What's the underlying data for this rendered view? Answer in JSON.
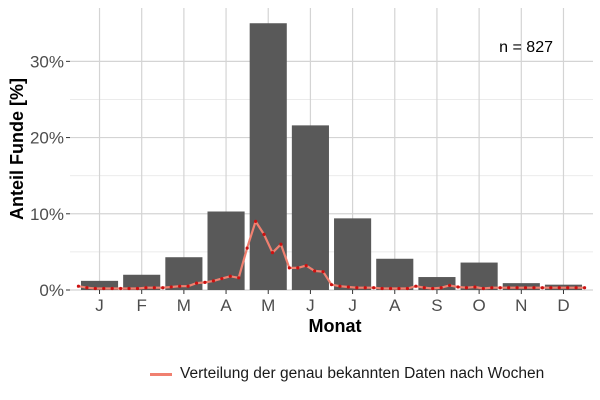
{
  "chart_data": {
    "type": "bar",
    "categories": [
      "J",
      "F",
      "M",
      "A",
      "M",
      "J",
      "J",
      "A",
      "S",
      "O",
      "N",
      "D"
    ],
    "values": [
      1.2,
      2.0,
      4.3,
      10.3,
      35.0,
      21.6,
      9.4,
      4.1,
      1.7,
      3.6,
      0.9,
      0.7
    ],
    "xlabel": "Monat",
    "ylabel": "Anteil Funde [%]",
    "ylim": [
      0,
      37
    ],
    "yticks": [
      0,
      10,
      20,
      30
    ],
    "ytick_labels": [
      "0%",
      "10%",
      "20%",
      "30%"
    ],
    "annotation": "n = 827",
    "bar_color": "#595959",
    "grid": true,
    "legend_position": "bottom",
    "series": [
      {
        "name": "Verteilung der genau bekannten Daten nach Wochen",
        "type": "line",
        "color": "#f08070",
        "point_color": "#cc1111",
        "x": [
          0.5,
          0.7,
          0.9,
          1.1,
          1.3,
          1.5,
          1.7,
          1.9,
          2.1,
          2.3,
          2.5,
          2.7,
          2.9,
          3.1,
          3.3,
          3.5,
          3.7,
          3.9,
          4.1,
          4.3,
          4.5,
          4.7,
          4.9,
          5.1,
          5.3,
          5.5,
          5.7,
          5.9,
          6.1,
          6.3,
          6.5,
          6.7,
          6.9,
          7.1,
          7.3,
          7.5,
          7.7,
          7.9,
          8.1,
          8.3,
          8.5,
          8.7,
          8.9,
          9.1,
          9.3,
          9.5,
          9.7,
          9.9,
          10.1,
          10.3,
          10.5,
          10.7,
          10.9,
          11.1,
          11.3,
          11.5,
          11.7,
          11.9,
          12.1,
          12.3,
          12.5
        ],
        "values": [
          0.5,
          0.3,
          0.2,
          0.2,
          0.2,
          0.2,
          0.2,
          0.2,
          0.3,
          0.3,
          0.3,
          0.4,
          0.5,
          0.5,
          0.9,
          1.0,
          1.2,
          1.5,
          1.8,
          1.6,
          5.5,
          9.0,
          7.3,
          4.9,
          6.0,
          2.9,
          2.9,
          3.2,
          2.5,
          2.4,
          0.7,
          0.5,
          0.4,
          0.3,
          0.3,
          0.3,
          0.2,
          0.2,
          0.2,
          0.2,
          0.5,
          0.3,
          0.2,
          0.3,
          0.6,
          0.4,
          0.3,
          0.4,
          0.2,
          0.3,
          0.3,
          0.3,
          0.3,
          0.3,
          0.3,
          0.3,
          0.3,
          0.3,
          0.3,
          0.3,
          0.3
        ]
      }
    ]
  }
}
